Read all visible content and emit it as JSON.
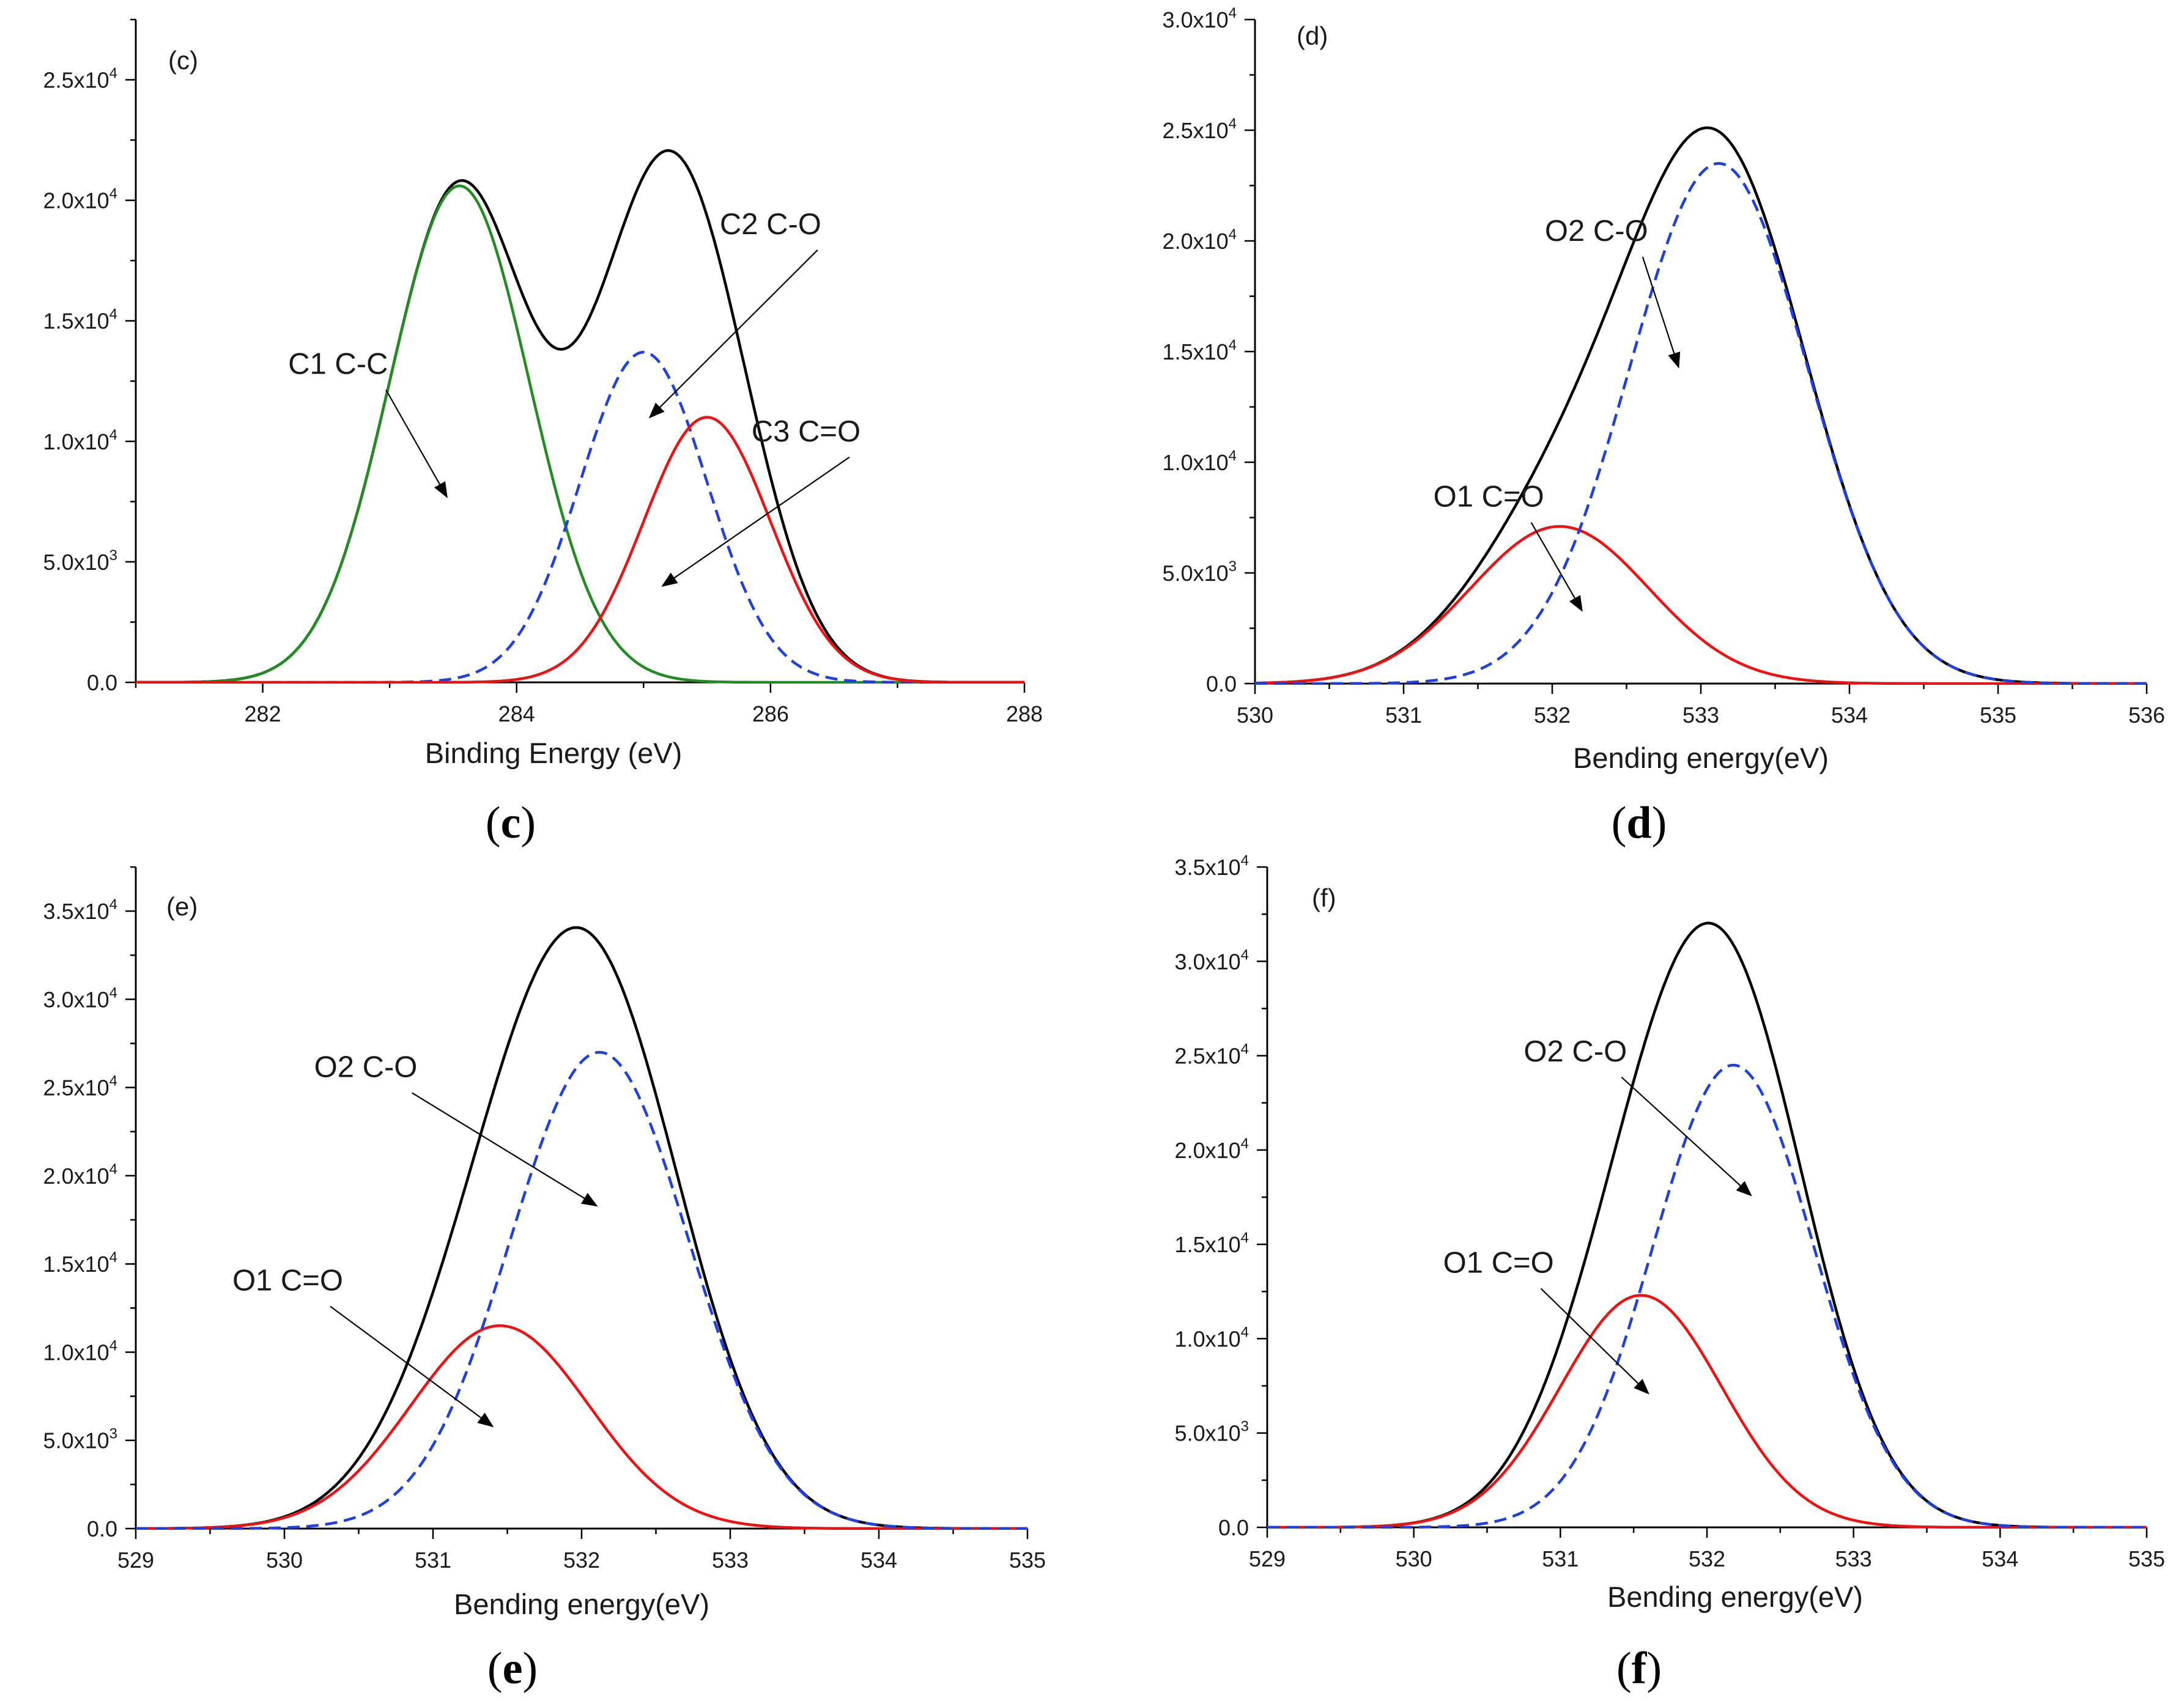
{
  "chart_data": [
    {
      "type": "line",
      "panel_label": "(c)",
      "caption_letter": "c",
      "xlabel": "Binding Energy (eV)",
      "ylabel": "",
      "xlim": [
        281,
        288
      ],
      "ylim": [
        0,
        27500
      ],
      "xticks": [
        282,
        284,
        286,
        288
      ],
      "xtick_labels": [
        "282",
        "284",
        "286",
        "288"
      ],
      "xminor": 1,
      "yticks": [
        0,
        5000,
        10000,
        15000,
        20000,
        25000
      ],
      "ytick_mantissa": [
        "0.0",
        "5.0x10",
        "1.0x10",
        "1.5x10",
        "2.0x10",
        "2.5x10"
      ],
      "ytick_exp": [
        "",
        "3",
        "4",
        "4",
        "4",
        "4"
      ],
      "yminor": 2500,
      "series": [
        {
          "name": "envelope",
          "color": "#000000",
          "dash": false,
          "components": [
            [
              20600,
              283.55,
              0.55
            ],
            [
              13700,
              285.0,
              0.5
            ],
            [
              11000,
              285.5,
              0.5
            ]
          ]
        },
        {
          "name": "C1 C-C",
          "color": "#228b22",
          "dash": false,
          "components": [
            [
              20600,
              283.55,
              0.55
            ]
          ]
        },
        {
          "name": "C2 C-O",
          "color": "#1f3fe0",
          "dash": true,
          "components": [
            [
              13700,
              285.0,
              0.5
            ]
          ]
        },
        {
          "name": "C3 C=O",
          "color": "#ee1111",
          "dash": false,
          "components": [
            [
              11000,
              285.5,
              0.5
            ]
          ]
        }
      ],
      "annotations": [
        {
          "text": "C1 C-C",
          "tx": 282.2,
          "ty": 12800,
          "ax": 283.45,
          "ay": 7700
        },
        {
          "text": "C2 C-O",
          "tx": 285.6,
          "ty": 18600,
          "ax": 285.05,
          "ay": 11000
        },
        {
          "text": "C3 C=O",
          "tx": 285.85,
          "ty": 10000,
          "ax": 285.15,
          "ay": 4000
        }
      ]
    },
    {
      "type": "line",
      "panel_label": "(d)",
      "caption_letter": "d",
      "xlabel": "Bending energy(eV)",
      "ylabel": "",
      "xlim": [
        530,
        536
      ],
      "ylim": [
        0,
        30000
      ],
      "xticks": [
        530,
        531,
        532,
        533,
        534,
        535,
        536
      ],
      "xtick_labels": [
        "530",
        "531",
        "532",
        "533",
        "534",
        "535",
        "536"
      ],
      "xminor": 0.5,
      "yticks": [
        0,
        5000,
        10000,
        15000,
        20000,
        25000,
        30000
      ],
      "ytick_mantissa": [
        "0.0",
        "5.0x10",
        "1.0x10",
        "1.5x10",
        "2.0x10",
        "2.5x10",
        "3.0x10"
      ],
      "ytick_exp": [
        "",
        "3",
        "4",
        "4",
        "4",
        "4",
        "4"
      ],
      "yminor": 2500,
      "series": [
        {
          "name": "envelope",
          "color": "#000000",
          "dash": false,
          "components": [
            [
              7100,
              532.05,
              0.6
            ],
            [
              23500,
              533.12,
              0.6
            ]
          ]
        },
        {
          "name": "O1 C=O",
          "color": "#ee1111",
          "dash": false,
          "components": [
            [
              7100,
              532.05,
              0.6
            ]
          ]
        },
        {
          "name": "O2 C-O",
          "color": "#1f3fe0",
          "dash": true,
          "components": [
            [
              23500,
              533.12,
              0.6
            ]
          ]
        }
      ],
      "annotations": [
        {
          "text": "O1 C=O",
          "tx": 531.2,
          "ty": 8000,
          "ax": 532.2,
          "ay": 3300
        },
        {
          "text": "O2 C-O",
          "tx": 531.95,
          "ty": 20000,
          "ax": 532.85,
          "ay": 14300
        }
      ]
    },
    {
      "type": "line",
      "panel_label": "(e)",
      "caption_letter": "e",
      "xlabel": "Bending energy(eV)",
      "ylabel": "",
      "xlim": [
        529,
        535
      ],
      "ylim": [
        0,
        37500
      ],
      "xticks": [
        529,
        530,
        531,
        532,
        533,
        534,
        535
      ],
      "xtick_labels": [
        "529",
        "530",
        "531",
        "532",
        "533",
        "534",
        "535"
      ],
      "xminor": 0.5,
      "yticks": [
        0,
        5000,
        10000,
        15000,
        20000,
        25000,
        30000,
        35000
      ],
      "ytick_mantissa": [
        "0.0",
        "5.0x10",
        "1.0x10",
        "1.5x10",
        "2.0x10",
        "2.5x10",
        "3.0x10",
        "3.5x10"
      ],
      "ytick_exp": [
        "",
        "3",
        "4",
        "4",
        "4",
        "4",
        "4",
        "4"
      ],
      "yminor": 2500,
      "series": [
        {
          "name": "envelope",
          "color": "#000000",
          "dash": false,
          "components": [
            [
              11500,
              531.45,
              0.6
            ],
            [
              27000,
              532.12,
              0.6
            ]
          ]
        },
        {
          "name": "O1 C=O",
          "color": "#ee1111",
          "dash": false,
          "components": [
            [
              11500,
              531.45,
              0.6
            ]
          ]
        },
        {
          "name": "O2 C-O",
          "color": "#1f3fe0",
          "dash": true,
          "components": [
            [
              27000,
              532.12,
              0.6
            ]
          ]
        }
      ],
      "annotations": [
        {
          "text": "O1 C=O",
          "tx": 529.65,
          "ty": 13500,
          "ax": 531.4,
          "ay": 5800
        },
        {
          "text": "O2 C-O",
          "tx": 530.2,
          "ty": 25600,
          "ax": 532.1,
          "ay": 18300
        }
      ]
    },
    {
      "type": "line",
      "panel_label": "(f)",
      "caption_letter": "f",
      "xlabel": "Bending energy(eV)",
      "ylabel": "",
      "xlim": [
        529,
        535
      ],
      "ylim": [
        0,
        35000
      ],
      "xticks": [
        529,
        530,
        531,
        532,
        533,
        534,
        535
      ],
      "xtick_labels": [
        "529",
        "530",
        "531",
        "532",
        "533",
        "534",
        "535"
      ],
      "xminor": 0.5,
      "yticks": [
        0,
        5000,
        10000,
        15000,
        20000,
        25000,
        30000,
        35000
      ],
      "ytick_mantissa": [
        "0.0",
        "5.0x10",
        "1.0x10",
        "1.5x10",
        "2.0x10",
        "2.5x10",
        "3.0x10",
        "3.5x10"
      ],
      "ytick_exp": [
        "",
        "3",
        "4",
        "4",
        "4",
        "4",
        "4",
        "4"
      ],
      "yminor": 2500,
      "series": [
        {
          "name": "envelope",
          "color": "#000000",
          "dash": false,
          "components": [
            [
              12300,
              531.55,
              0.55
            ],
            [
              24500,
              532.18,
              0.55
            ]
          ]
        },
        {
          "name": "O1 C=O",
          "color": "#ee1111",
          "dash": false,
          "components": [
            [
              12300,
              531.55,
              0.55
            ]
          ]
        },
        {
          "name": "O2 C-O",
          "color": "#1f3fe0",
          "dash": true,
          "components": [
            [
              24500,
              532.18,
              0.55
            ]
          ]
        }
      ],
      "annotations": [
        {
          "text": "O1 C=O",
          "tx": 530.2,
          "ty": 13500,
          "ax": 531.6,
          "ay": 7100
        },
        {
          "text": "O2 C-O",
          "tx": 530.75,
          "ty": 24700,
          "ax": 532.3,
          "ay": 17600
        }
      ]
    }
  ]
}
